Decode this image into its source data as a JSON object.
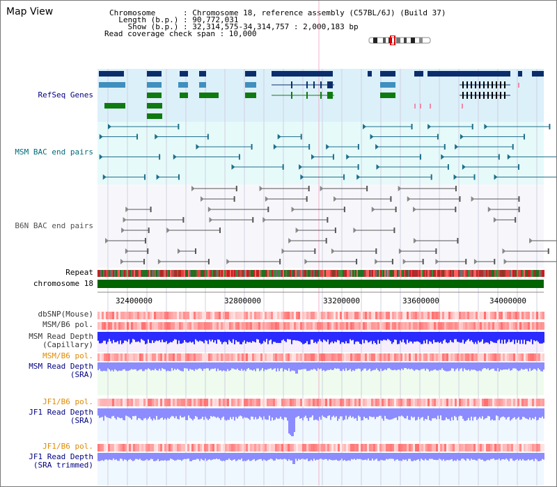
{
  "title": "Map View",
  "info": {
    "chromosome_key": "Chromosome",
    "chromosome_val": "Chromosome 18, reference assembly (C57BL/6J) (Build 37)",
    "length_key": "Length (b.p.)",
    "length_val": "90,772,031",
    "show_key": "Show (b.p.)",
    "show_val": "32,314,575-34,314,757 : 2,000,183 bp",
    "coverage_line": "Read coverage check span : 10,000"
  },
  "tracks": {
    "refseq": "RefSeq Genes",
    "msm_bac": "MSM BAC end pairs",
    "b6n_bac": "B6N BAC end pairs",
    "repeat": "Repeat",
    "chromosome": "chromosome 18",
    "dbsnp": "dbSNP(Mouse)",
    "msm_pol_1": "MSM/B6 pol.",
    "msm_depth_cap_1": "MSM Read Depth",
    "msm_depth_cap_2": "(Capillary)",
    "msm_pol_2": "MSM/B6 pol.",
    "msm_depth_sra_1": "MSM Read Depth",
    "msm_depth_sra_2": "(SRA)",
    "jf1_pol_1": "JF1/B6 pol.",
    "jf1_depth_sra_1": "JF1 Read Depth",
    "jf1_depth_sra_2": "(SRA)",
    "jf1_pol_2": "JF1/B6 pol.",
    "jf1_depth_trim_1": "JF1 Read Depth",
    "jf1_depth_trim_2": "(SRA trimmed)"
  },
  "axis": {
    "ticks": [
      "32400000",
      "32800000",
      "33200000",
      "33600000",
      "34000000"
    ]
  },
  "colors": {
    "refseq_bg": "#dcf0fa",
    "bac_bg": "#e6fafa",
    "gene_dark": "#0b2d6b",
    "gene_mid": "#3f8fbf",
    "gene_green": "#0f7a0f",
    "msm_pair": "#1f6f8b",
    "b6n_pair": "#555555",
    "chromosome_bar": "#006400",
    "depth_blue": "#2b2bff",
    "depth_light": "#8c8cff",
    "label_navy": "#000080",
    "label_teal": "#006a7a",
    "label_orange": "#e08a00",
    "label_gray": "#505050"
  }
}
